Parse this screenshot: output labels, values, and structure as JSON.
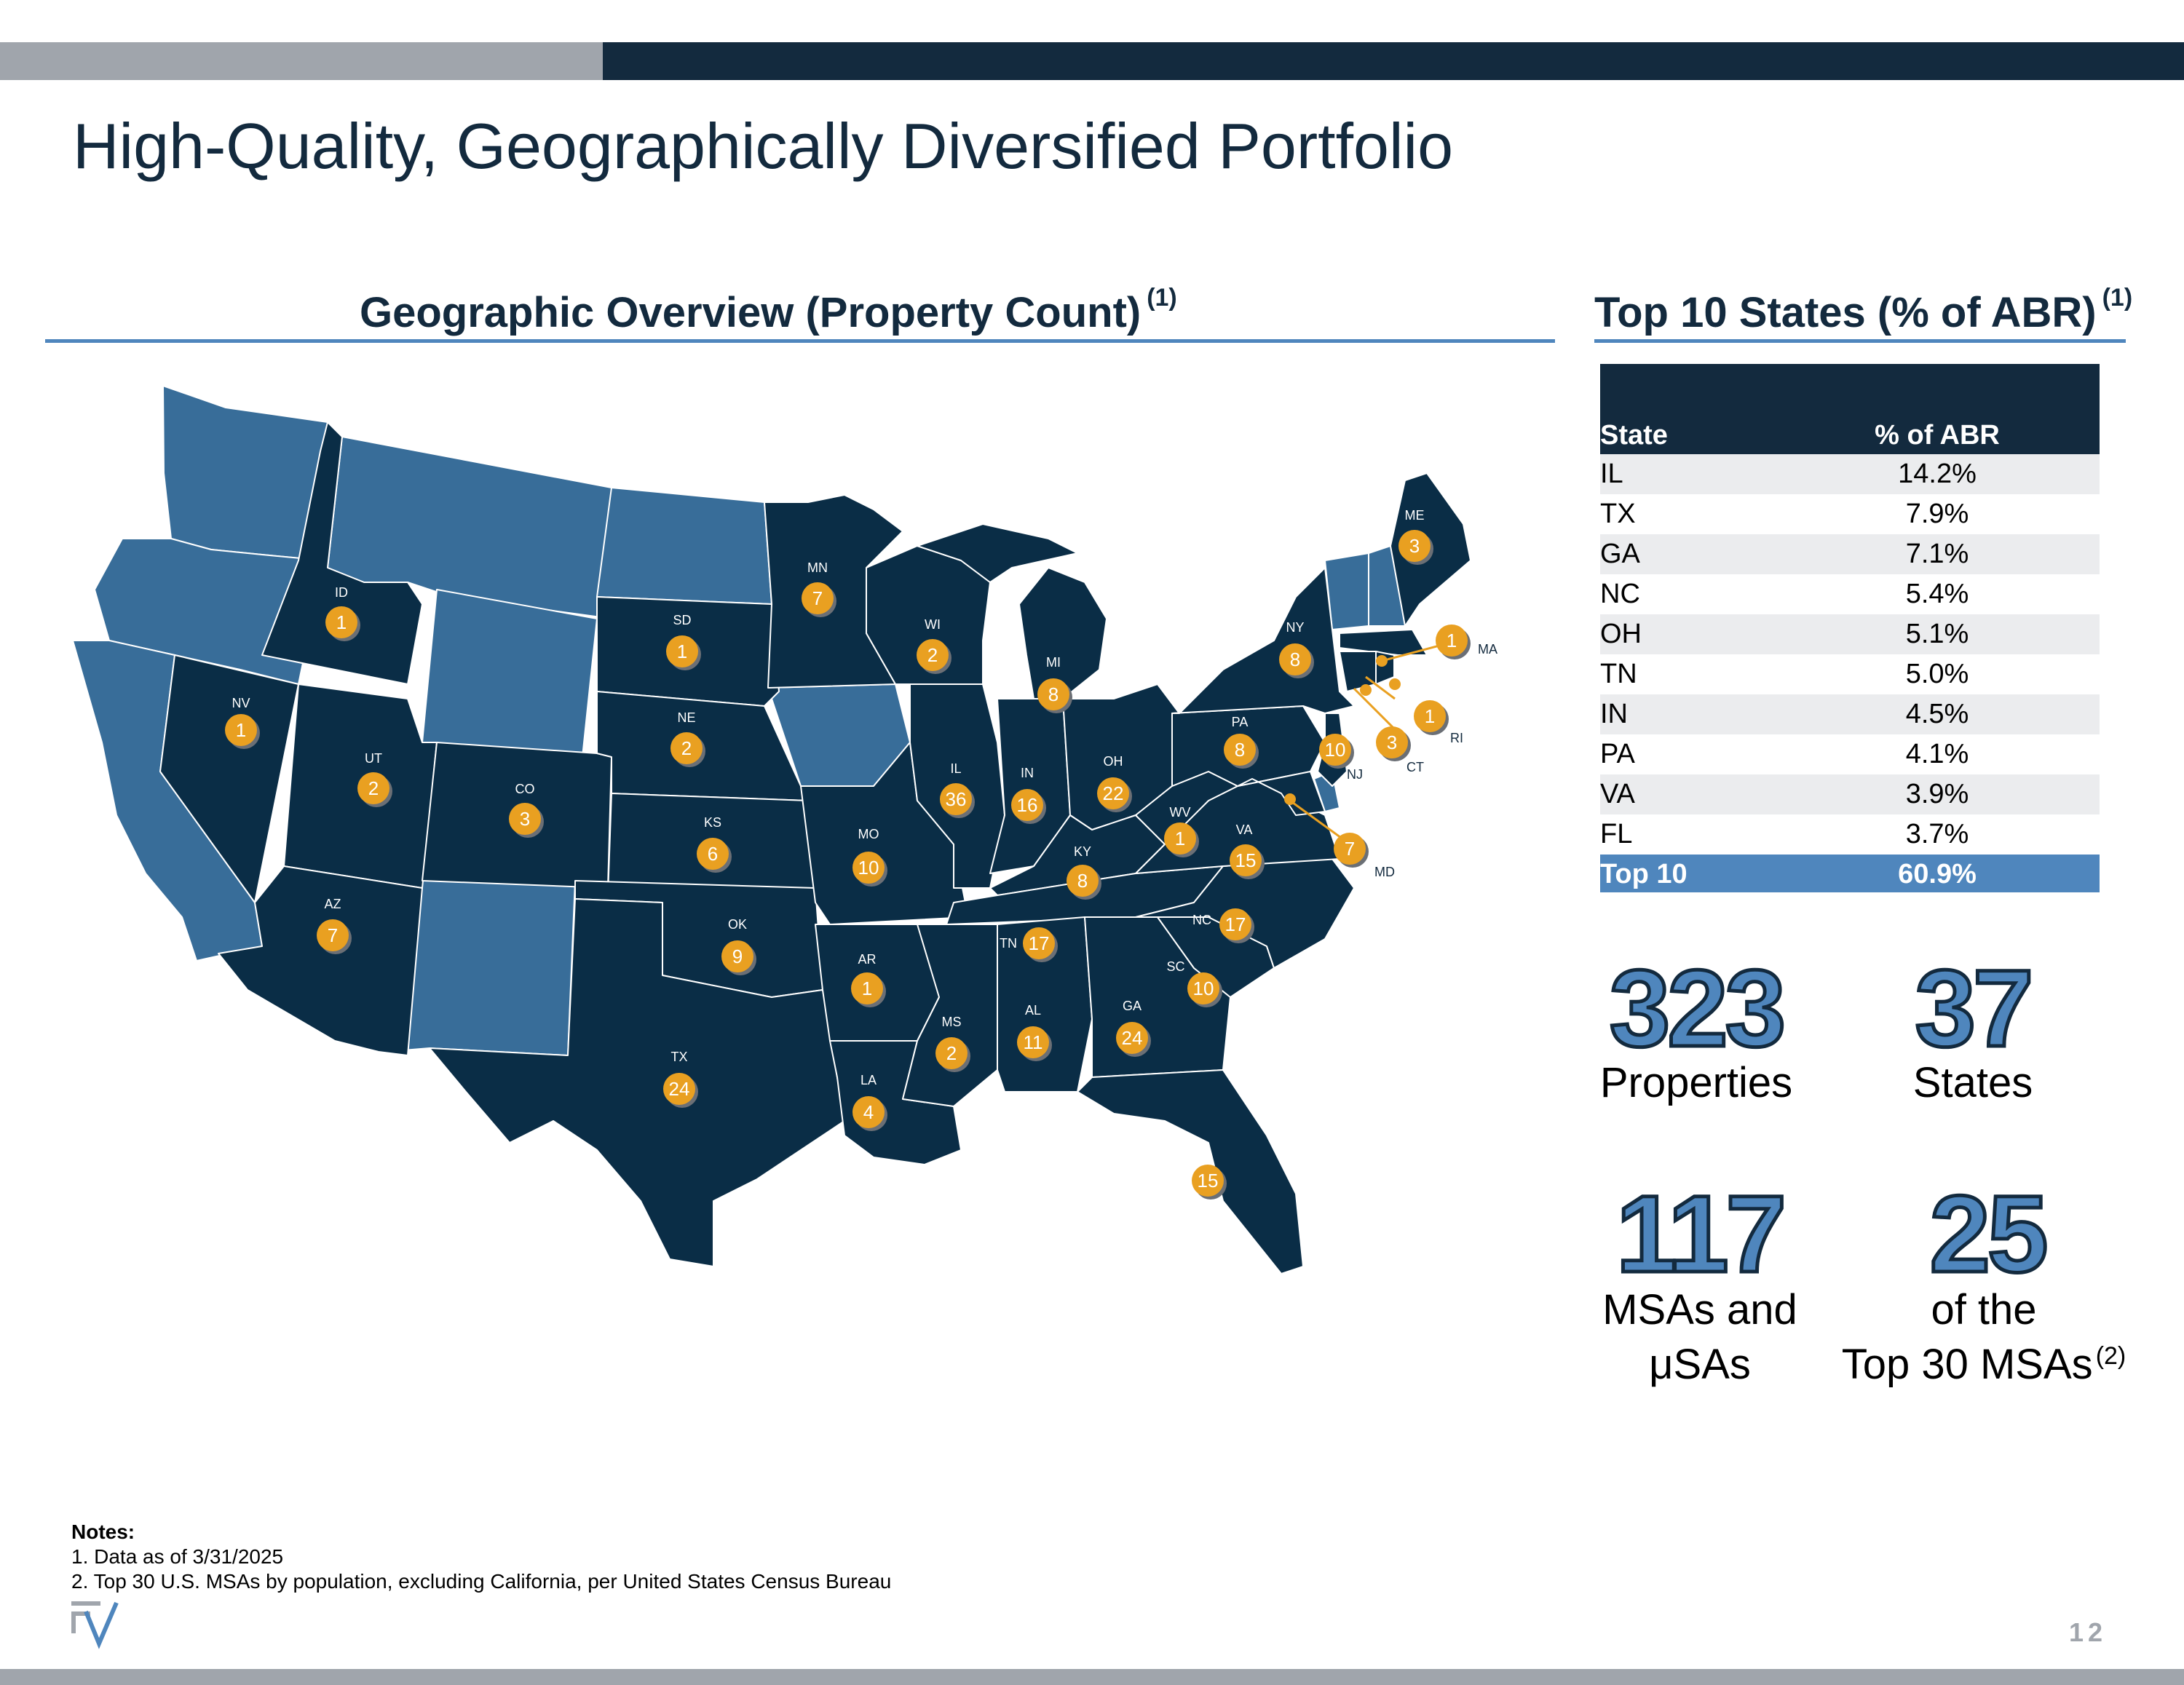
{
  "header": {
    "title": "High-Quality, Geographically Diversified Portfolio",
    "page_number": "12"
  },
  "map_section": {
    "title": "Geographic Overview (Property Count)",
    "footnote_marker": "(1)"
  },
  "table_section": {
    "title": "Top 10 States (% of ABR)",
    "footnote_marker": "(1)",
    "col_state": "State",
    "col_pct": "% of ABR",
    "rows": [
      {
        "state": "IL",
        "pct": "14.2%"
      },
      {
        "state": "TX",
        "pct": "7.9%"
      },
      {
        "state": "GA",
        "pct": "7.1%"
      },
      {
        "state": "NC",
        "pct": "5.4%"
      },
      {
        "state": "OH",
        "pct": "5.1%"
      },
      {
        "state": "TN",
        "pct": "5.0%"
      },
      {
        "state": "IN",
        "pct": "4.5%"
      },
      {
        "state": "PA",
        "pct": "4.1%"
      },
      {
        "state": "VA",
        "pct": "3.9%"
      },
      {
        "state": "FL",
        "pct": "3.7%"
      }
    ],
    "total": {
      "state": "Top 10",
      "pct": "60.9%"
    }
  },
  "stats": {
    "properties": {
      "value": "323",
      "label": "Properties"
    },
    "states": {
      "value": "37",
      "label": "States"
    },
    "msas": {
      "value": "117",
      "label_line1": "MSAs and",
      "label_line2": "μSAs"
    },
    "top30": {
      "value": "25",
      "label_line1": "of the",
      "label_line2": "Top 30 MSAs",
      "footnote": "(2)"
    }
  },
  "notes": {
    "heading": "Notes:",
    "note1": "1. Data as of 3/31/2025",
    "note2": "2. Top 30 U.S. MSAs by population, excluding California, per United States Census Bureau"
  },
  "colors": {
    "navy": "#132a3e",
    "map_dark": "#0a2d46",
    "map_light": "#386d99",
    "accent_blue": "#4f86bd",
    "badge_orange": "#e9a021",
    "grey_bar": "#a0a5ac"
  },
  "map_badges": [
    {
      "state": "ID",
      "count": "1"
    },
    {
      "state": "NV",
      "count": "1"
    },
    {
      "state": "UT",
      "count": "2"
    },
    {
      "state": "CO",
      "count": "3"
    },
    {
      "state": "AZ",
      "count": "7"
    },
    {
      "state": "SD",
      "count": "1"
    },
    {
      "state": "NE",
      "count": "2"
    },
    {
      "state": "KS",
      "count": "6"
    },
    {
      "state": "OK",
      "count": "9"
    },
    {
      "state": "TX",
      "count": "24"
    },
    {
      "state": "MN",
      "count": "7"
    },
    {
      "state": "MO",
      "count": "10"
    },
    {
      "state": "AR",
      "count": "1"
    },
    {
      "state": "LA",
      "count": "4"
    },
    {
      "state": "WI",
      "count": "2"
    },
    {
      "state": "IL",
      "count": "36"
    },
    {
      "state": "MS",
      "count": "2"
    },
    {
      "state": "MI",
      "count": "8"
    },
    {
      "state": "IN",
      "count": "16"
    },
    {
      "state": "KY",
      "count": "8"
    },
    {
      "state": "TN",
      "count": "17"
    },
    {
      "state": "AL",
      "count": "11"
    },
    {
      "state": "OH",
      "count": "22"
    },
    {
      "state": "WV",
      "count": "1"
    },
    {
      "state": "GA",
      "count": "24"
    },
    {
      "state": "FL",
      "count": "15"
    },
    {
      "state": "SC",
      "count": "10"
    },
    {
      "state": "NC",
      "count": "17"
    },
    {
      "state": "VA",
      "count": "15"
    },
    {
      "state": "PA",
      "count": "8"
    },
    {
      "state": "NY",
      "count": "8"
    },
    {
      "state": "NJ",
      "count": "10"
    },
    {
      "state": "ME",
      "count": "3"
    },
    {
      "state": "MA",
      "count": "1"
    },
    {
      "state": "RI",
      "count": "1"
    },
    {
      "state": "CT",
      "count": "3"
    },
    {
      "state": "MD",
      "count": "7"
    }
  ]
}
